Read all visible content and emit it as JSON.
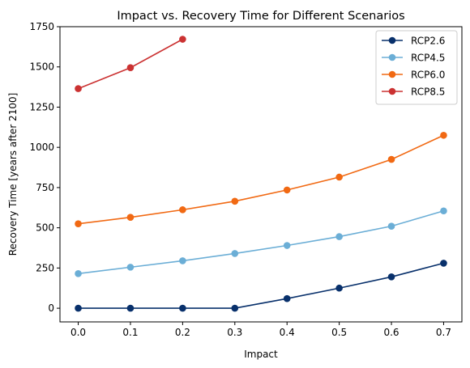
{
  "chart_data": {
    "type": "line",
    "title": "Impact vs. Recovery Time for Different Scenarios",
    "xlabel": "Impact",
    "ylabel": "Recovery Time [years after 2100]",
    "xlim": [
      -0.035,
      0.735
    ],
    "ylim": [
      -85,
      1750
    ],
    "xticks": [
      "0.0",
      "0.1",
      "0.2",
      "0.3",
      "0.4",
      "0.5",
      "0.6",
      "0.7"
    ],
    "yticks": [
      "0",
      "250",
      "500",
      "750",
      "1000",
      "1250",
      "1500",
      "1750"
    ],
    "grid": false,
    "legend_position": "top-right",
    "series": [
      {
        "name": "RCP2.6",
        "color": "#08306b",
        "x": [
          0.0,
          0.1,
          0.2,
          0.3,
          0.4,
          0.5,
          0.6,
          0.7
        ],
        "y": [
          0,
          0,
          0,
          0,
          60,
          125,
          195,
          280
        ]
      },
      {
        "name": "RCP4.5",
        "color": "#6baed6",
        "x": [
          0.0,
          0.1,
          0.2,
          0.3,
          0.4,
          0.5,
          0.6,
          0.7
        ],
        "y": [
          215,
          255,
          295,
          340,
          390,
          445,
          510,
          605
        ]
      },
      {
        "name": "RCP6.0",
        "color": "#f16913",
        "x": [
          0.0,
          0.1,
          0.2,
          0.3,
          0.4,
          0.5,
          0.6,
          0.7
        ],
        "y": [
          525,
          565,
          612,
          665,
          735,
          815,
          925,
          1075
        ]
      },
      {
        "name": "RCP8.5",
        "color": "#cb3232",
        "x": [
          0.0,
          0.1,
          0.2
        ],
        "y": [
          1365,
          1495,
          1672
        ]
      }
    ]
  }
}
